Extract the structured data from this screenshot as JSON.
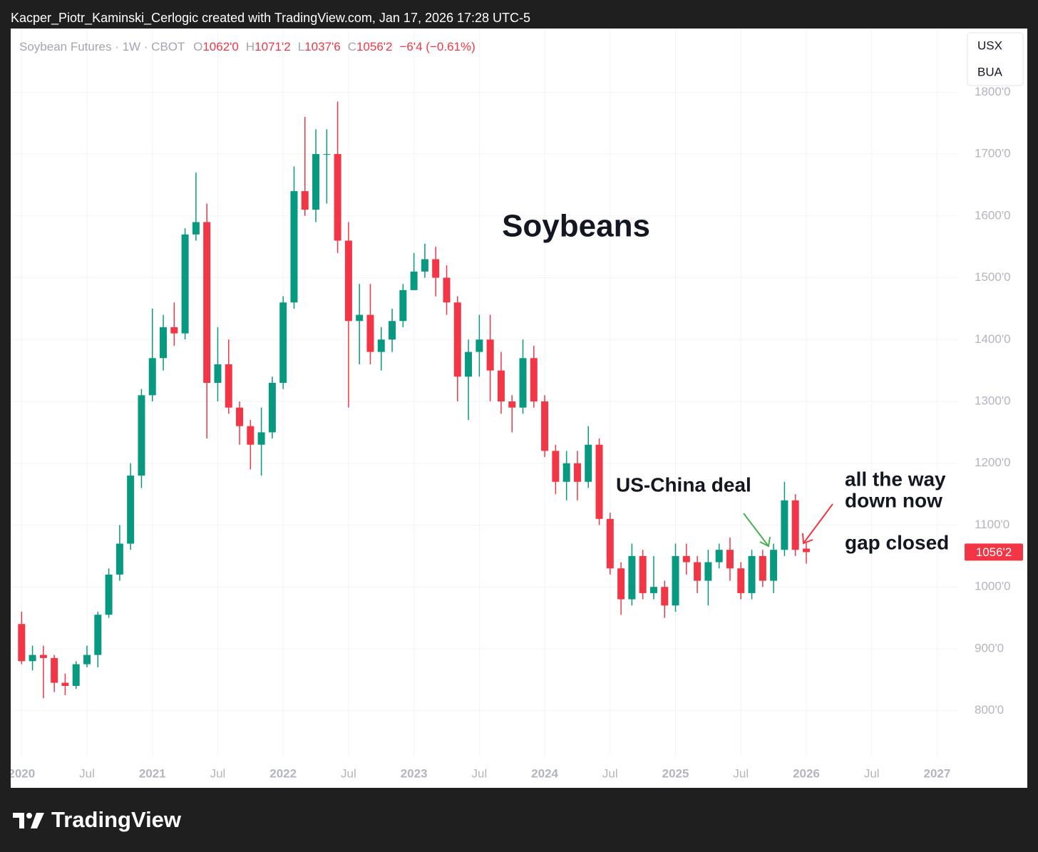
{
  "watermark": "Kacper_Piotr_Kaminski_Cerlogic created with TradingView.com, Jan 17, 2026 17:28 UTC-5",
  "header": {
    "symbol": "Soybean Futures · 1W · CBOT",
    "o_label": "O",
    "open": "1062'0",
    "h_label": "H",
    "high": "1071'2",
    "l_label": "L",
    "low": "1037'6",
    "c_label": "C",
    "close": "1056'2",
    "change": "−6'4 (−0.61%)"
  },
  "legend": [
    "USX",
    "BUA"
  ],
  "footer": {
    "brand": "TradingView"
  },
  "chart_data": {
    "type": "candlestick",
    "title": "Soybeans",
    "annotations": [
      "US-China deal",
      "all the way",
      "down now",
      "gap closed"
    ],
    "up_color": "#089981",
    "down_color": "#f23645",
    "x": [
      "2020-01",
      "2020-02",
      "2020-03",
      "2020-04",
      "2020-05",
      "2020-06",
      "2020-07",
      "2020-08",
      "2020-09",
      "2020-10",
      "2020-11",
      "2020-12",
      "2021-01",
      "2021-02",
      "2021-03",
      "2021-04",
      "2021-05",
      "2021-06",
      "2021-07",
      "2021-08",
      "2021-09",
      "2021-10",
      "2021-11",
      "2021-12",
      "2022-01",
      "2022-02",
      "2022-03",
      "2022-04",
      "2022-05",
      "2022-06",
      "2022-07",
      "2022-08",
      "2022-09",
      "2022-10",
      "2022-11",
      "2022-12",
      "2023-01",
      "2023-02",
      "2023-03",
      "2023-04",
      "2023-05",
      "2023-06",
      "2023-07",
      "2023-08",
      "2023-09",
      "2023-10",
      "2023-11",
      "2023-12",
      "2024-01",
      "2024-02",
      "2024-03",
      "2024-04",
      "2024-05",
      "2024-06",
      "2024-07",
      "2024-08",
      "2024-09",
      "2024-10",
      "2024-11",
      "2024-12",
      "2025-01",
      "2025-02",
      "2025-03",
      "2025-04",
      "2025-05",
      "2025-06",
      "2025-07",
      "2025-08",
      "2025-09",
      "2025-10",
      "2025-11",
      "2025-12",
      "2026-01"
    ],
    "open": [
      940,
      880,
      890,
      885,
      845,
      840,
      875,
      890,
      955,
      1020,
      1070,
      1180,
      1310,
      1370,
      1420,
      1410,
      1570,
      1590,
      1330,
      1360,
      1290,
      1260,
      1230,
      1250,
      1330,
      1460,
      1640,
      1610,
      1700,
      1700,
      1560,
      1430,
      1440,
      1380,
      1400,
      1430,
      1480,
      1510,
      1530,
      1500,
      1460,
      1340,
      1380,
      1400,
      1350,
      1300,
      1290,
      1370,
      1300,
      1220,
      1170,
      1200,
      1170,
      1230,
      1110,
      1030,
      980,
      1050,
      990,
      1000,
      970,
      1050,
      1040,
      1010,
      1040,
      1060,
      1030,
      990,
      1050,
      1010,
      1060,
      1140,
      1062
    ],
    "high": [
      960,
      905,
      905,
      890,
      860,
      880,
      905,
      960,
      1030,
      1100,
      1200,
      1320,
      1450,
      1440,
      1460,
      1580,
      1670,
      1620,
      1420,
      1400,
      1300,
      1270,
      1290,
      1340,
      1470,
      1680,
      1760,
      1740,
      1740,
      1785,
      1590,
      1490,
      1490,
      1420,
      1450,
      1490,
      1540,
      1555,
      1550,
      1520,
      1470,
      1400,
      1440,
      1440,
      1380,
      1310,
      1400,
      1390,
      1310,
      1230,
      1220,
      1220,
      1260,
      1240,
      1120,
      1040,
      1070,
      1060,
      1050,
      1010,
      1070,
      1070,
      1050,
      1060,
      1070,
      1080,
      1040,
      1060,
      1060,
      1070,
      1170,
      1150,
      1071.25
    ],
    "low": [
      875,
      865,
      820,
      830,
      825,
      835,
      870,
      870,
      950,
      1010,
      1060,
      1160,
      1300,
      1350,
      1390,
      1400,
      1560,
      1240,
      1300,
      1280,
      1230,
      1190,
      1180,
      1240,
      1320,
      1450,
      1600,
      1590,
      1620,
      1540,
      1290,
      1360,
      1360,
      1350,
      1380,
      1420,
      1480,
      1500,
      1470,
      1440,
      1300,
      1270,
      1340,
      1300,
      1280,
      1250,
      1280,
      1290,
      1210,
      1150,
      1140,
      1140,
      1160,
      1100,
      1020,
      955,
      970,
      980,
      980,
      950,
      960,
      1020,
      990,
      970,
      1030,
      1010,
      980,
      980,
      1000,
      990,
      1050,
      1050,
      1037.75
    ],
    "close": [
      880,
      890,
      885,
      845,
      840,
      875,
      890,
      955,
      1020,
      1070,
      1180,
      1310,
      1370,
      1420,
      1410,
      1570,
      1590,
      1330,
      1360,
      1290,
      1260,
      1230,
      1250,
      1330,
      1460,
      1640,
      1610,
      1700,
      1700,
      1560,
      1430,
      1440,
      1380,
      1400,
      1430,
      1480,
      1510,
      1530,
      1500,
      1460,
      1340,
      1380,
      1400,
      1350,
      1300,
      1290,
      1370,
      1300,
      1220,
      1170,
      1200,
      1170,
      1230,
      1110,
      1030,
      980,
      1050,
      990,
      1000,
      970,
      1050,
      1040,
      1010,
      1040,
      1060,
      1030,
      990,
      1050,
      1010,
      1060,
      1140,
      1060,
      1056.25
    ],
    "last_price": {
      "value": 1056.25,
      "label": "1056'2"
    },
    "ylim": [
      727,
      1903
    ],
    "yticks": [
      {
        "value": 800,
        "label": "800'0"
      },
      {
        "value": 900,
        "label": "900'0"
      },
      {
        "value": 1000,
        "label": "1000'0"
      },
      {
        "value": 1100,
        "label": "1100'0"
      },
      {
        "value": 1200,
        "label": "1200'0"
      },
      {
        "value": 1300,
        "label": "1300'0"
      },
      {
        "value": 1400,
        "label": "1400'0"
      },
      {
        "value": 1500,
        "label": "1500'0"
      },
      {
        "value": 1600,
        "label": "1600'0"
      },
      {
        "value": 1700,
        "label": "1700'0"
      },
      {
        "value": 1800,
        "label": "1800'0"
      }
    ],
    "xlim": [
      "2019-12",
      "2027-03"
    ],
    "xticks": [
      {
        "value": "2020-01",
        "label": "2020"
      },
      {
        "value": "2020-07",
        "label": "Jul"
      },
      {
        "value": "2021-01",
        "label": "2021"
      },
      {
        "value": "2021-07",
        "label": "Jul"
      },
      {
        "value": "2022-01",
        "label": "2022"
      },
      {
        "value": "2022-07",
        "label": "Jul"
      },
      {
        "value": "2023-01",
        "label": "2023"
      },
      {
        "value": "2023-07",
        "label": "Jul"
      },
      {
        "value": "2024-01",
        "label": "2024"
      },
      {
        "value": "2024-07",
        "label": "Jul"
      },
      {
        "value": "2025-01",
        "label": "2025"
      },
      {
        "value": "2025-07",
        "label": "Jul"
      },
      {
        "value": "2026-01",
        "label": "2026"
      },
      {
        "value": "2026-07",
        "label": "Jul"
      },
      {
        "value": "2027-01",
        "label": "2027"
      }
    ],
    "grid": true
  }
}
